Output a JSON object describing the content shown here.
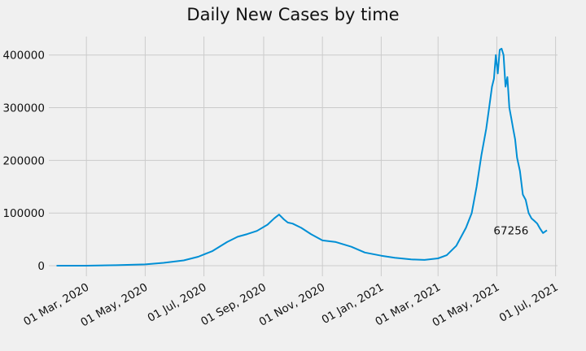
{
  "chart_data": {
    "type": "line",
    "title": "Daily New Cases by time",
    "xlabel": "",
    "ylabel": "",
    "grid": true,
    "color": "#008fd5",
    "background": "#f0f0f0",
    "xlim": [
      "2020-01-22",
      "2021-07-03"
    ],
    "ylim": [
      -20000,
      435000
    ],
    "x_ticks": [
      {
        "date": "2020-03-01",
        "label": "01 Mar, 2020"
      },
      {
        "date": "2020-05-01",
        "label": "01 May, 2020"
      },
      {
        "date": "2020-07-01",
        "label": "01 Jul, 2020"
      },
      {
        "date": "2020-09-01",
        "label": "01 Sep, 2020"
      },
      {
        "date": "2020-11-01",
        "label": "01 Nov, 2020"
      },
      {
        "date": "2021-01-01",
        "label": "01 Jan, 2021"
      },
      {
        "date": "2021-03-01",
        "label": "01 Mar, 2021"
      },
      {
        "date": "2021-05-01",
        "label": "01 May, 2021"
      },
      {
        "date": "2021-07-01",
        "label": "01 Jul, 2021"
      }
    ],
    "y_ticks": [
      {
        "value": 0,
        "label": "0"
      },
      {
        "value": 100000,
        "label": "100000"
      },
      {
        "value": 200000,
        "label": "200000"
      },
      {
        "value": 300000,
        "label": "300000"
      },
      {
        "value": 400000,
        "label": "400000"
      }
    ],
    "annotation": {
      "date": "2021-05-01",
      "value": 67256,
      "text": "67256"
    },
    "series": [
      {
        "x": [
          "2020-01-30",
          "2020-03-01",
          "2020-04-01",
          "2020-05-01",
          "2020-05-20",
          "2020-06-10",
          "2020-06-25",
          "2020-07-10",
          "2020-07-25",
          "2020-08-05",
          "2020-08-15",
          "2020-08-25",
          "2020-09-05",
          "2020-09-12",
          "2020-09-17",
          "2020-09-22",
          "2020-09-26",
          "2020-10-01",
          "2020-10-10",
          "2020-10-20",
          "2020-11-01",
          "2020-11-15",
          "2020-12-01",
          "2020-12-15",
          "2021-01-01",
          "2021-01-15",
          "2021-02-01",
          "2021-02-15",
          "2021-03-01",
          "2021-03-10",
          "2021-03-20",
          "2021-03-25",
          "2021-03-30",
          "2021-04-05",
          "2021-04-10",
          "2021-04-15",
          "2021-04-20",
          "2021-04-23",
          "2021-04-26",
          "2021-04-28",
          "2021-04-30",
          "2021-05-02",
          "2021-05-04",
          "2021-05-06",
          "2021-05-08",
          "2021-05-10",
          "2021-05-12",
          "2021-05-14",
          "2021-05-16",
          "2021-05-18",
          "2021-05-20",
          "2021-05-22",
          "2021-05-25",
          "2021-05-28",
          "2021-05-31",
          "2021-06-03",
          "2021-06-06",
          "2021-06-09",
          "2021-06-12",
          "2021-06-15",
          "2021-06-18",
          "2021-06-22"
        ],
        "values": [
          0,
          50,
          1000,
          2500,
          5500,
          10000,
          17000,
          28000,
          45000,
          55000,
          60000,
          66000,
          78000,
          90000,
          97000,
          88000,
          82000,
          80000,
          72000,
          60000,
          48000,
          45000,
          36000,
          25000,
          19000,
          15000,
          12000,
          11000,
          14000,
          20000,
          38000,
          55000,
          72000,
          100000,
          150000,
          210000,
          260000,
          300000,
          340000,
          355000,
          400000,
          365000,
          410000,
          412000,
          400000,
          340000,
          358000,
          300000,
          280000,
          260000,
          240000,
          205000,
          180000,
          135000,
          125000,
          100000,
          90000,
          85000,
          80000,
          70000,
          62000,
          67256
        ]
      }
    ]
  }
}
